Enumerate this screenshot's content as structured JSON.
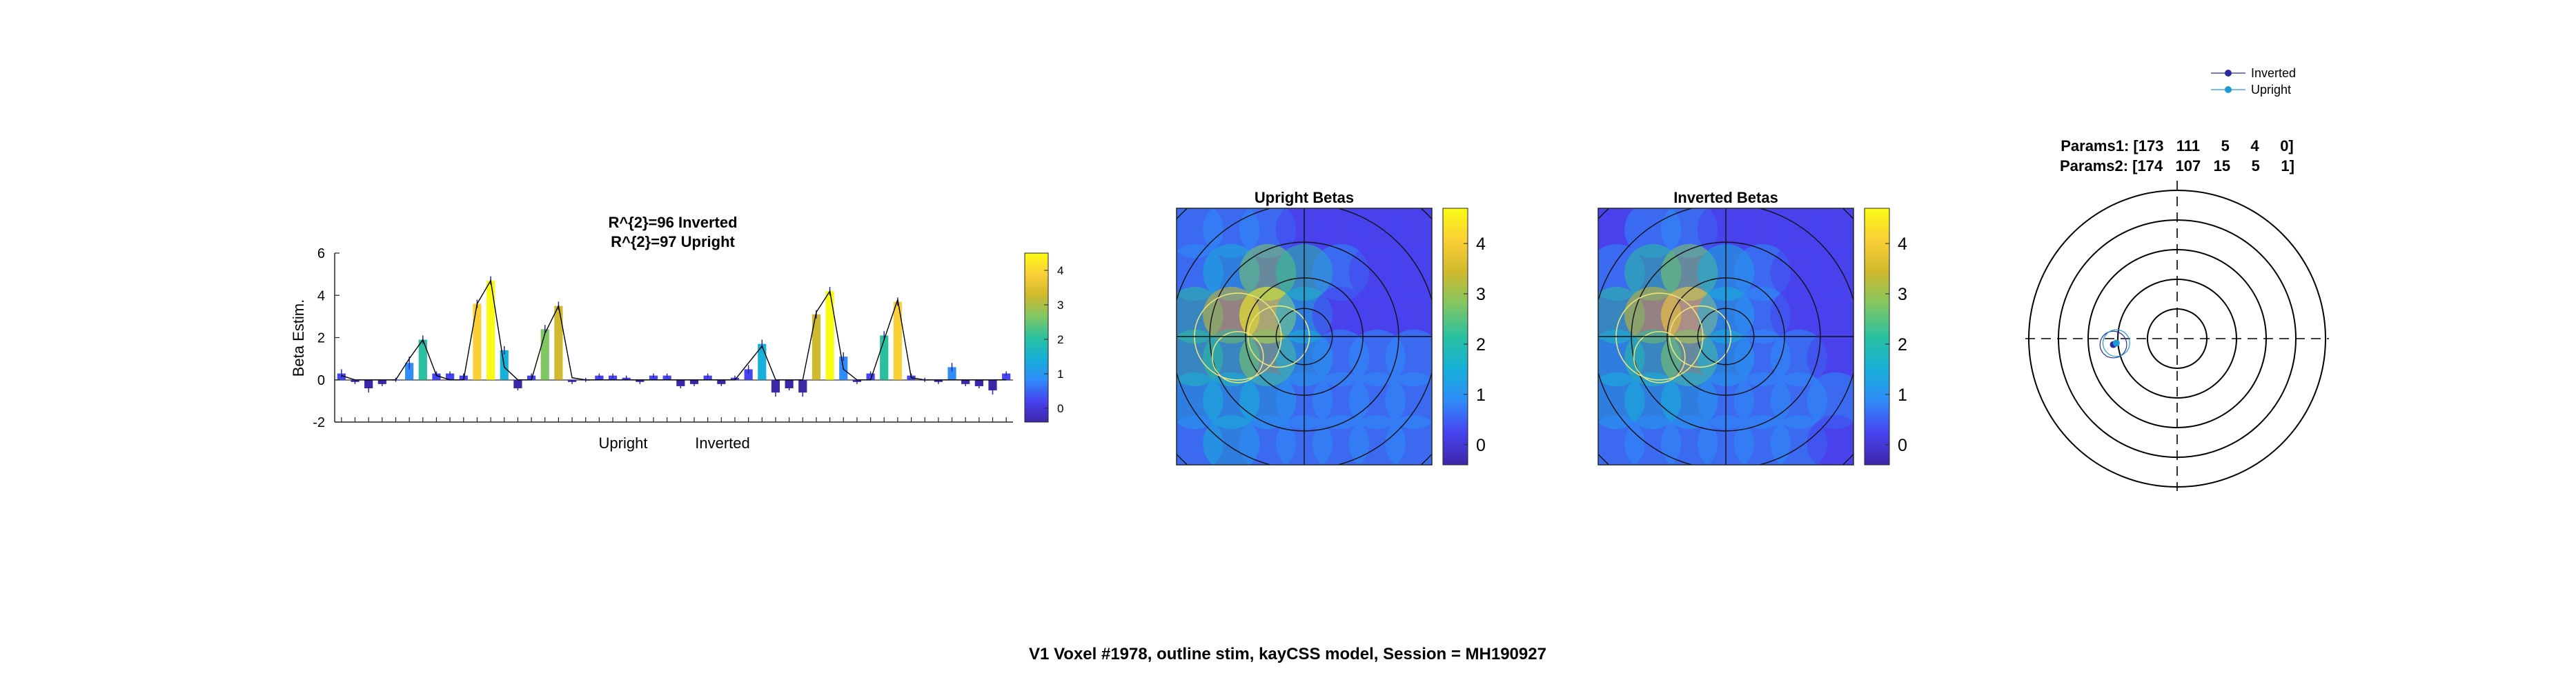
{
  "figure_title": "V1 Voxel #1978, outline stim, kayCSS model, Session = MH190927",
  "colors": {
    "parula": [
      "#3e26a8",
      "#4743f0",
      "#2f8cf8",
      "#17b0d8",
      "#2ac09f",
      "#80c763",
      "#d0b92e",
      "#fbcf36",
      "#f9fb15"
    ],
    "model_line": "#000000",
    "inverted_marker": "#2b2ba0",
    "upright_marker": "#1f9ad8"
  },
  "chart_data": [
    {
      "type": "bar",
      "title_lines": [
        "R^{2}=96 Inverted",
        "R^{2}=97 Upright"
      ],
      "ylabel": "Beta Estim.",
      "xlabel": "",
      "ylim": [
        -2,
        6
      ],
      "yticks": [
        "-2",
        "0",
        "2",
        "4",
        "6"
      ],
      "group_labels": [
        "Upright",
        "Inverted"
      ],
      "values": [
        0.3,
        -0.1,
        -0.4,
        -0.2,
        0.0,
        0.8,
        1.9,
        0.3,
        0.3,
        0.2,
        3.6,
        4.7,
        1.4,
        -0.4,
        0.2,
        2.4,
        3.5,
        -0.1,
        0.0,
        0.2,
        0.2,
        0.1,
        -0.1,
        0.2,
        0.2,
        -0.3,
        -0.2,
        0.2,
        -0.2,
        0.1,
        0.5,
        1.7,
        -0.6,
        -0.4,
        -0.6,
        3.1,
        4.2,
        1.1,
        -0.1,
        0.3,
        2.1,
        3.7,
        0.2,
        0.0,
        -0.1,
        0.6,
        -0.2,
        -0.3,
        -0.5,
        0.3
      ],
      "errors": [
        0.2,
        0.1,
        0.2,
        0.1,
        0.1,
        0.3,
        0.2,
        0.1,
        0.1,
        0.1,
        0.2,
        0.2,
        0.2,
        0.1,
        0.1,
        0.2,
        0.2,
        0.1,
        0.1,
        0.1,
        0.1,
        0.1,
        0.1,
        0.1,
        0.1,
        0.1,
        0.1,
        0.1,
        0.1,
        0.1,
        0.2,
        0.2,
        0.2,
        0.1,
        0.2,
        0.2,
        0.2,
        0.2,
        0.1,
        0.1,
        0.2,
        0.2,
        0.1,
        0.1,
        0.1,
        0.2,
        0.1,
        0.1,
        0.2,
        0.1
      ],
      "model": [
        0.2,
        0.0,
        0.0,
        0.0,
        0.0,
        1.0,
        1.9,
        0.2,
        0.0,
        0.0,
        3.6,
        4.7,
        0.6,
        0.0,
        0.0,
        2.2,
        3.5,
        0.1,
        0.0,
        0.0,
        0.0,
        0.0,
        0.0,
        0.0,
        0.0,
        0.0,
        0.0,
        0.0,
        0.0,
        0.0,
        0.8,
        1.6,
        0.0,
        0.0,
        0.0,
        3.2,
        4.2,
        0.5,
        0.0,
        0.0,
        1.9,
        3.8,
        0.1,
        0.0,
        0.0,
        0.0,
        0.0,
        0.0,
        0.0,
        0.0
      ],
      "colorbar_ticks": [
        "0",
        "1",
        "2",
        "3",
        "4"
      ],
      "colorbar_range": [
        -0.4,
        4.5
      ]
    },
    {
      "type": "heatmap",
      "title": "Upright Betas",
      "colorbar_ticks": [
        "0",
        "1",
        "2",
        "3",
        "4"
      ],
      "colorbar_range": [
        -0.4,
        4.7
      ],
      "values": [
        0.7,
        0.6,
        0.8,
        0.4,
        0.2,
        0.3,
        0.5,
        0.9,
        1.8,
        2.6,
        1.9,
        0.6,
        0.3,
        0.4,
        2.1,
        3.6,
        4.4,
        1.2,
        0.5,
        0.3,
        0.2,
        1.9,
        2.3,
        2.9,
        1.4,
        1.0,
        0.9,
        0.6,
        1.8,
        1.4,
        1.3,
        0.9,
        0.8,
        0.7,
        0.6,
        1.1,
        1.2,
        1.0,
        0.9,
        0.8,
        0.7,
        0.6
      ]
    },
    {
      "type": "heatmap",
      "title": "Inverted Betas",
      "colorbar_ticks": [
        "0",
        "1",
        "2",
        "3",
        "4"
      ],
      "colorbar_range": [
        -0.4,
        4.7
      ],
      "values": [
        0.5,
        0.6,
        0.7,
        0.4,
        0.2,
        0.1,
        0.2,
        1.0,
        2.0,
        2.5,
        1.7,
        0.7,
        0.4,
        0.3,
        2.0,
        3.4,
        4.2,
        1.4,
        0.6,
        0.5,
        0.4,
        1.8,
        2.2,
        2.6,
        1.5,
        1.0,
        0.8,
        0.5,
        1.6,
        1.5,
        1.2,
        0.7,
        0.9,
        0.8,
        0.6,
        0.9,
        1.0,
        0.9,
        0.8,
        0.7,
        0.6,
        0.5
      ]
    },
    {
      "type": "scatter",
      "params_lines": [
        "Params1: [173   111     5     4     0]",
        "Params2: [174   107   15     5     1]"
      ],
      "legend": [
        "Inverted",
        "Upright"
      ],
      "legend_position": "top-right",
      "ring_count": 5,
      "points": [
        {
          "name": "Inverted",
          "x": -2.15,
          "y": -0.2
        },
        {
          "name": "Upright",
          "x": -2.05,
          "y": -0.15
        }
      ]
    }
  ]
}
